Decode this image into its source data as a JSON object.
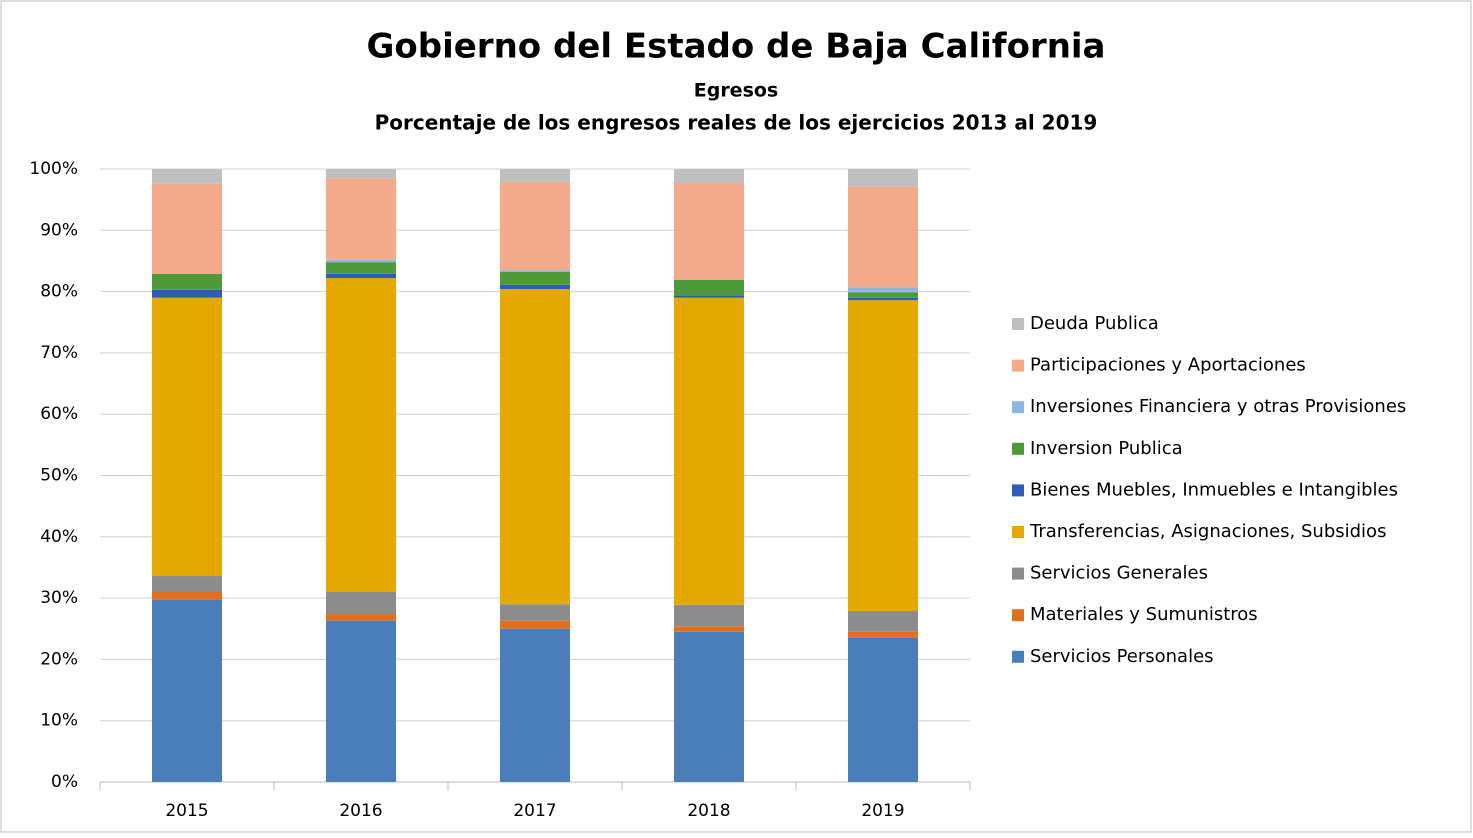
{
  "chart_data": {
    "type": "stacked_bar",
    "title": "Gobierno del Estado de Baja California",
    "subtitle": "Egresos",
    "subtitle2": "Porcentaje de los engresos reales de los ejercicios 2013 al  2019",
    "categories": [
      "2015",
      "2016",
      "2017",
      "2018",
      "2019"
    ],
    "series": [
      {
        "name": "Servicios Personales",
        "color": "#4a7ebb",
        "values": [
          29.7,
          26.3,
          25.0,
          24.5,
          23.5
        ]
      },
      {
        "name": "Materiales y Sumunistros",
        "color": "#e0701f",
        "values": [
          1.3,
          1.1,
          1.3,
          0.9,
          1.0
        ]
      },
      {
        "name": "Servicios Generales",
        "color": "#8c8c8c",
        "values": [
          2.6,
          3.6,
          2.7,
          3.5,
          3.4
        ]
      },
      {
        "name": "Transferencias, Asignaciones, Subsidios",
        "color": "#e5a800",
        "values": [
          45.4,
          51.2,
          51.4,
          50.1,
          50.7
        ]
      },
      {
        "name": "Bienes Muebles, Inmuebles e Intangibles",
        "color": "#2d5db8",
        "values": [
          1.3,
          0.7,
          0.7,
          0.4,
          0.4
        ]
      },
      {
        "name": "Inversion Publica",
        "color": "#4e9a3a",
        "values": [
          2.6,
          1.9,
          2.1,
          2.5,
          0.9
        ]
      },
      {
        "name": "Inversiones Financiera y otras Provisiones",
        "color": "#8fb4e3",
        "values": [
          0,
          0.4,
          0.3,
          0,
          0.8
        ]
      },
      {
        "name": "Participaciones y Aportaciones",
        "color": "#f4a98a",
        "values": [
          14.7,
          13.3,
          14.4,
          15.8,
          16.4
        ]
      },
      {
        "name": "Deuda Publica",
        "color": "#bfbfbf",
        "values": [
          2.4,
          1.5,
          2.1,
          2.3,
          2.9
        ]
      }
    ],
    "ylim": [
      0,
      100
    ],
    "yticks": [
      {
        "value": 0,
        "label": "0%"
      },
      {
        "value": 10,
        "label": "10%"
      },
      {
        "value": 20,
        "label": "20%"
      },
      {
        "value": 30,
        "label": "30%"
      },
      {
        "value": 40,
        "label": "40%"
      },
      {
        "value": 50,
        "label": "50%"
      },
      {
        "value": 60,
        "label": "60%"
      },
      {
        "value": 70,
        "label": "70%"
      },
      {
        "value": 80,
        "label": "80%"
      },
      {
        "value": 90,
        "label": "90%"
      },
      {
        "value": 100,
        "label": "100%"
      }
    ],
    "grid": true,
    "legend": "right"
  }
}
